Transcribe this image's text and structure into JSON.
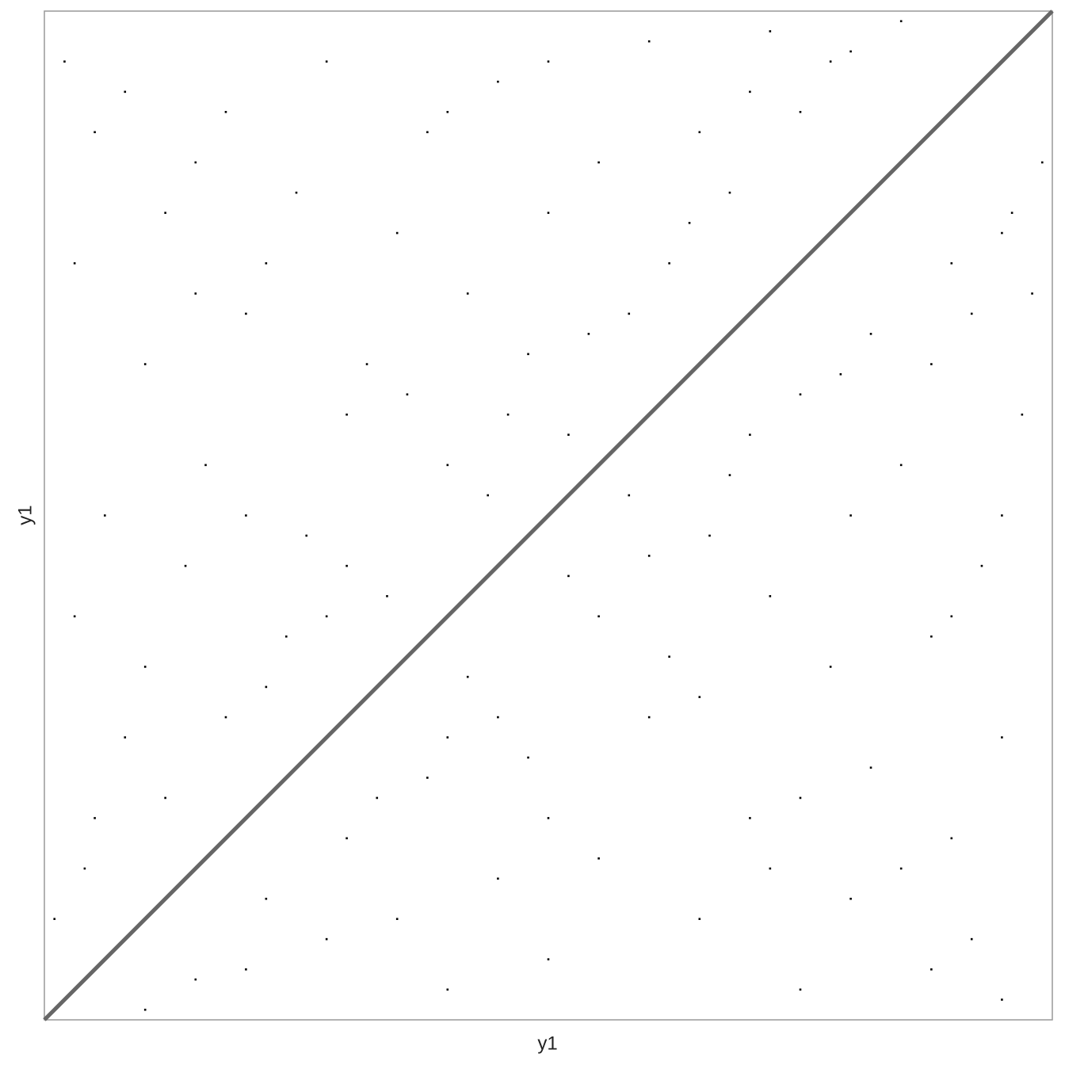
{
  "chart_data": {
    "type": "scatter",
    "x_label": "y1",
    "y_label": "y1",
    "xlim": [
      0,
      100
    ],
    "ylim": [
      0,
      100
    ],
    "color": "#000000",
    "x": [
      2,
      5,
      8,
      12,
      15,
      18,
      20,
      22,
      25,
      28,
      30,
      32,
      35,
      38,
      40,
      42,
      45,
      48,
      50,
      52,
      55,
      58,
      60,
      62,
      65,
      68,
      70,
      72,
      75,
      78,
      3,
      6,
      10,
      14,
      16,
      24,
      26,
      34,
      36,
      44,
      5,
      8,
      12,
      18,
      22,
      28,
      1,
      4,
      30,
      46,
      54,
      64,
      80,
      85,
      10,
      15,
      20,
      40,
      50,
      3,
      95,
      88,
      92,
      80,
      85,
      90,
      70,
      75,
      82,
      95,
      60,
      65,
      78,
      88,
      55,
      72,
      93,
      66,
      80,
      58,
      85,
      70,
      97,
      75,
      88,
      82,
      92,
      98,
      90,
      95,
      40,
      50,
      35,
      45,
      55,
      38,
      48,
      42,
      62,
      52,
      20,
      28,
      22,
      30,
      33,
      40,
      10,
      15,
      45,
      60,
      68,
      79,
      96,
      99,
      65,
      72,
      50,
      90,
      95,
      75
    ],
    "y": [
      95,
      88,
      92,
      80,
      85,
      90,
      70,
      75,
      82,
      95,
      60,
      65,
      78,
      88,
      55,
      72,
      93,
      66,
      80,
      58,
      85,
      70,
      97,
      75,
      88,
      82,
      92,
      98,
      90,
      95,
      40,
      50,
      35,
      45,
      55,
      38,
      48,
      42,
      62,
      52,
      20,
      28,
      22,
      30,
      33,
      40,
      10,
      15,
      45,
      60,
      68,
      79,
      96,
      99,
      65,
      72,
      50,
      90,
      95,
      75,
      2,
      5,
      8,
      12,
      15,
      18,
      20,
      22,
      25,
      28,
      30,
      32,
      35,
      38,
      40,
      42,
      45,
      48,
      50,
      52,
      55,
      58,
      60,
      62,
      65,
      68,
      70,
      72,
      75,
      78,
      3,
      6,
      10,
      14,
      16,
      24,
      26,
      34,
      36,
      44,
      5,
      8,
      12,
      18,
      22,
      28,
      1,
      4,
      30,
      46,
      54,
      64,
      80,
      85,
      10,
      15,
      20,
      40,
      50,
      3
    ],
    "line": {
      "x": [
        0,
        100
      ],
      "y": [
        0,
        100
      ],
      "color": "#666666"
    }
  }
}
